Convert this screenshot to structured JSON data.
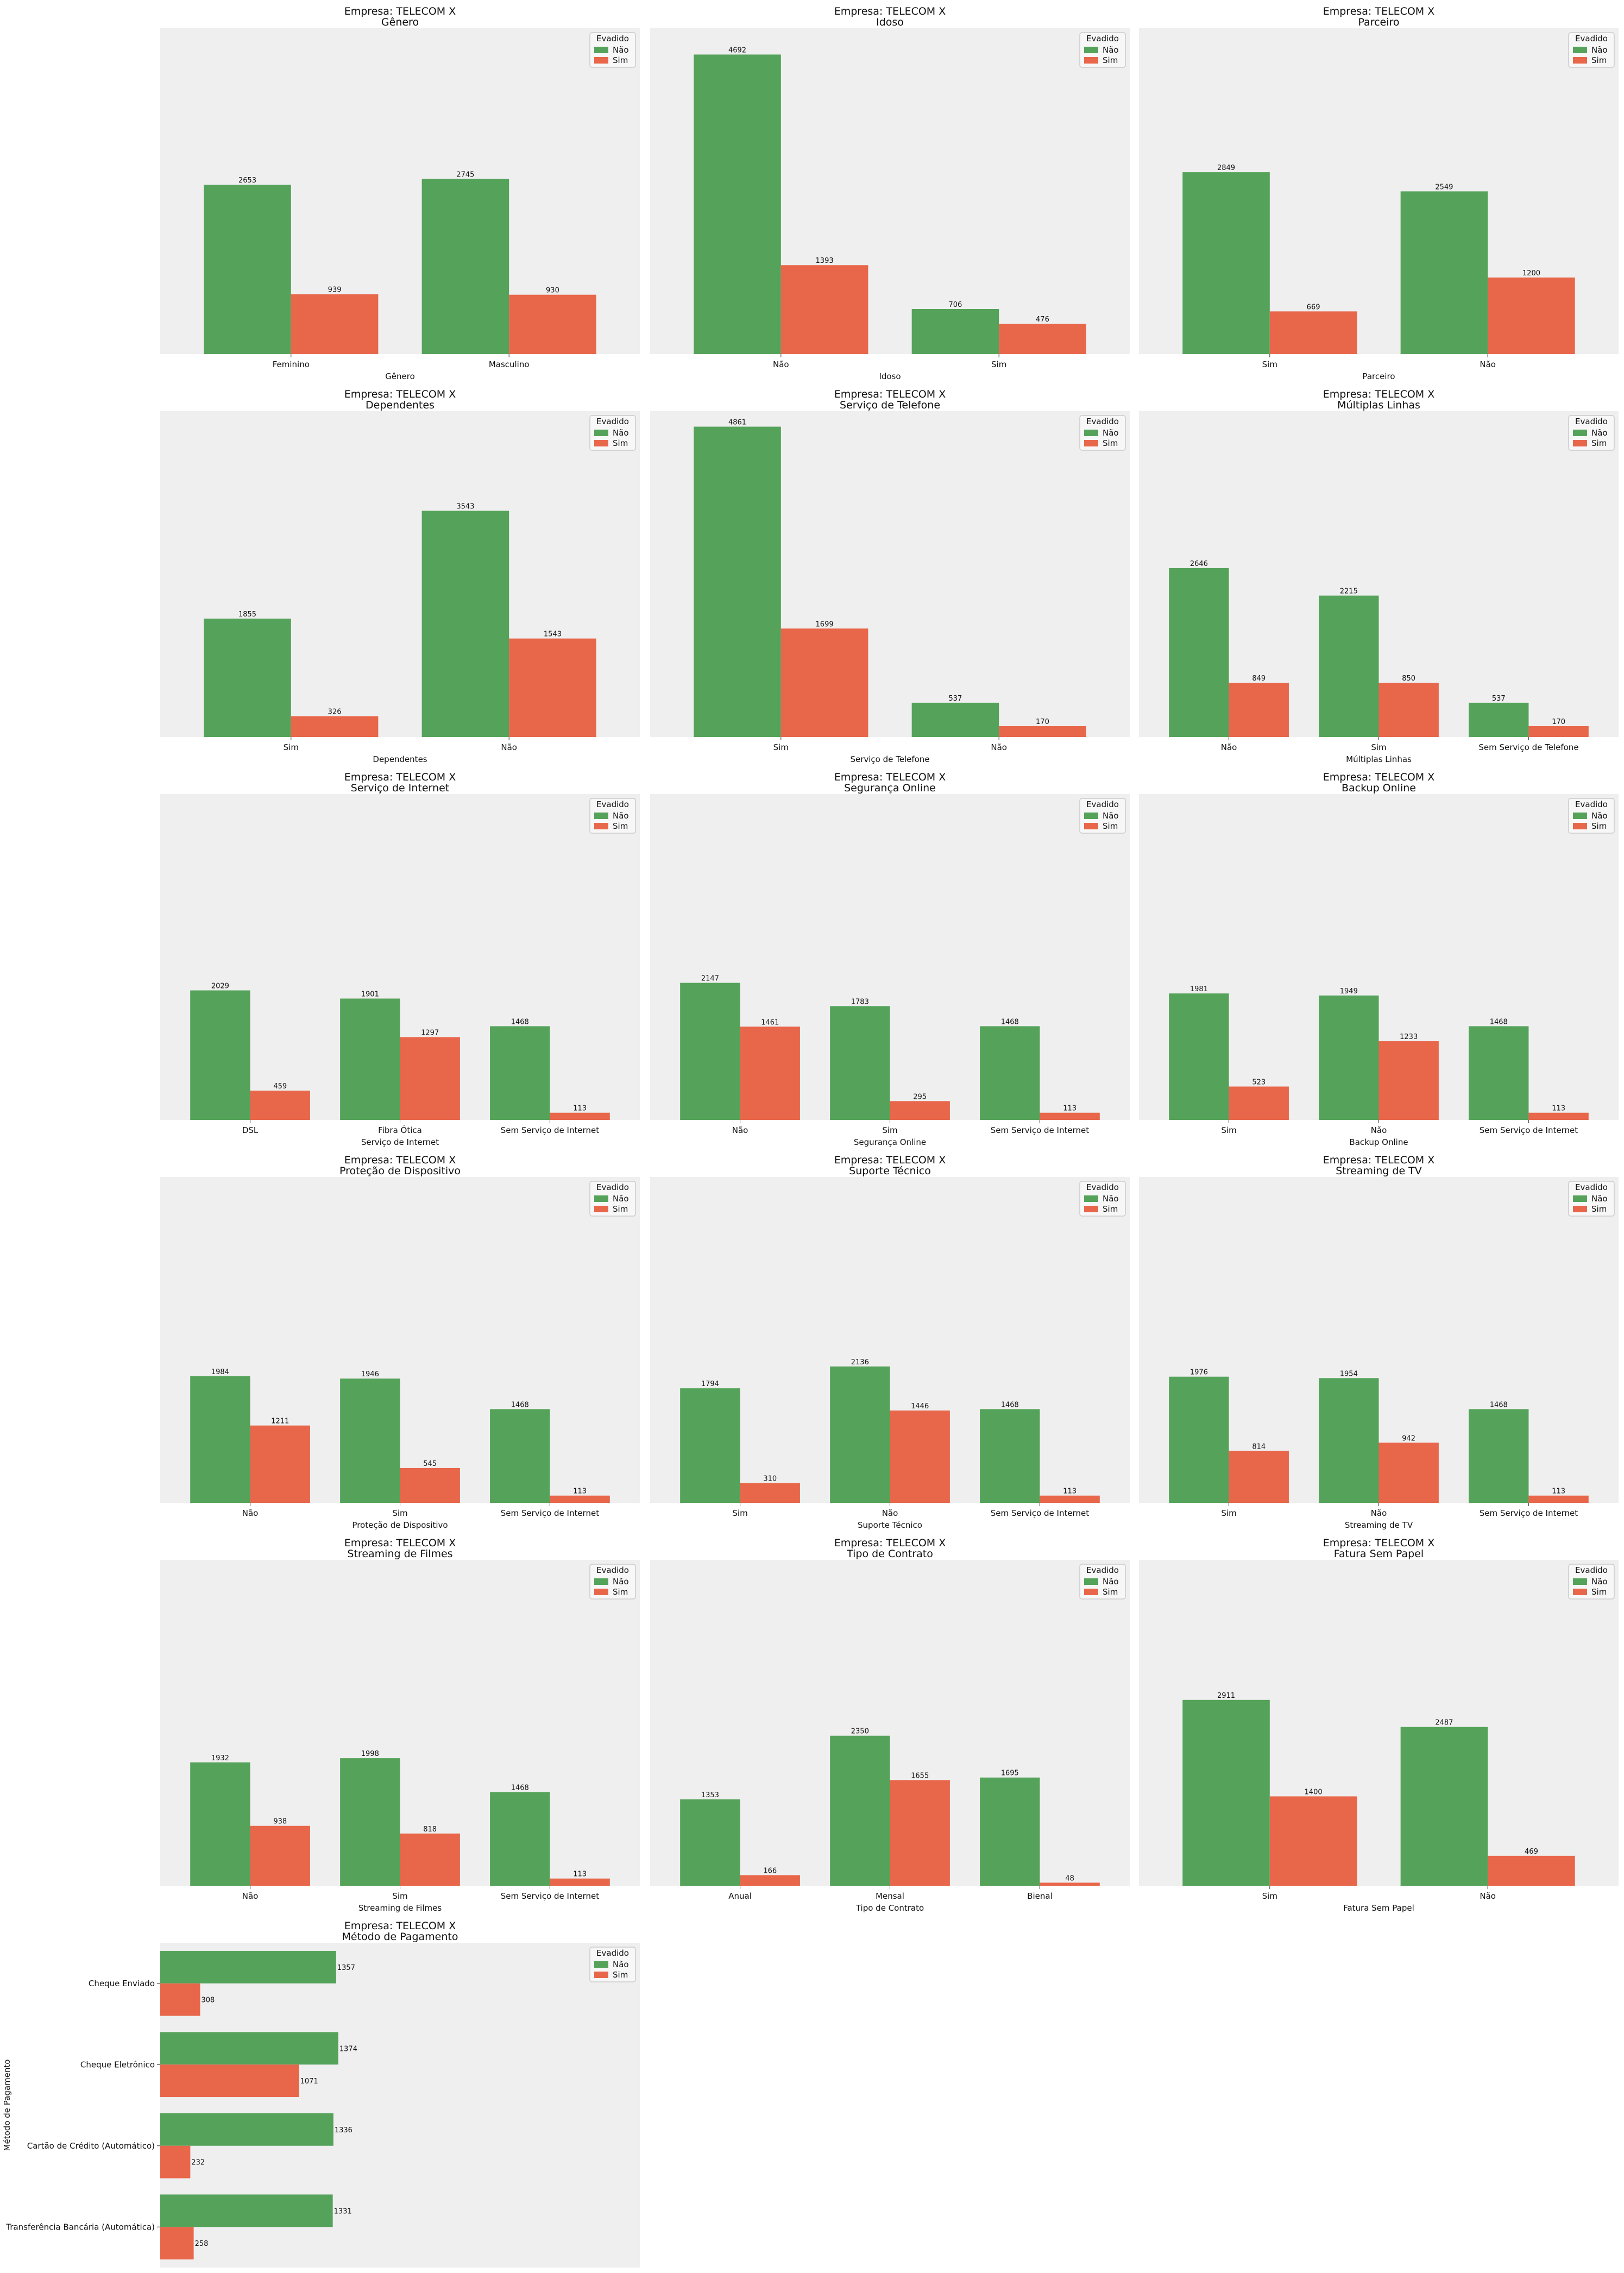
{
  "colors": {
    "nao": "#55a35a",
    "sim": "#e8664a",
    "panel_bg": "#efefef"
  },
  "chart_data": [
    {
      "type": "bar",
      "title": "Empresa: TELECOM X",
      "subtitle": "Gênero",
      "xlabel": "Gênero",
      "categories": [
        "Feminino",
        "Masculino"
      ],
      "legend": {
        "title": "Evadido",
        "position": "top-right"
      },
      "series": [
        {
          "name": "Não",
          "values": [
            2653,
            2745
          ]
        },
        {
          "name": "Sim",
          "values": [
            939,
            930
          ]
        }
      ]
    },
    {
      "type": "bar",
      "title": "Empresa: TELECOM X",
      "subtitle": "Idoso",
      "xlabel": "Idoso",
      "categories": [
        "Não",
        "Sim"
      ],
      "legend": {
        "title": "Evadido",
        "position": "top-right"
      },
      "series": [
        {
          "name": "Não",
          "values": [
            4692,
            706
          ]
        },
        {
          "name": "Sim",
          "values": [
            1393,
            476
          ]
        }
      ]
    },
    {
      "type": "bar",
      "title": "Empresa: TELECOM X",
      "subtitle": "Parceiro",
      "xlabel": "Parceiro",
      "categories": [
        "Sim",
        "Não"
      ],
      "legend": {
        "title": "Evadido",
        "position": "top-right"
      },
      "series": [
        {
          "name": "Não",
          "values": [
            2849,
            2549
          ]
        },
        {
          "name": "Sim",
          "values": [
            669,
            1200
          ]
        }
      ]
    },
    {
      "type": "bar",
      "title": "Empresa: TELECOM X",
      "subtitle": "Dependentes",
      "xlabel": "Dependentes",
      "categories": [
        "Sim",
        "Não"
      ],
      "legend": {
        "title": "Evadido",
        "position": "top-right"
      },
      "series": [
        {
          "name": "Não",
          "values": [
            1855,
            3543
          ]
        },
        {
          "name": "Sim",
          "values": [
            326,
            1543
          ]
        }
      ]
    },
    {
      "type": "bar",
      "title": "Empresa: TELECOM X",
      "subtitle": "Serviço de Telefone",
      "xlabel": "Serviço de Telefone",
      "categories": [
        "Sim",
        "Não"
      ],
      "legend": {
        "title": "Evadido",
        "position": "top-right"
      },
      "series": [
        {
          "name": "Não",
          "values": [
            4861,
            537
          ]
        },
        {
          "name": "Sim",
          "values": [
            1699,
            170
          ]
        }
      ]
    },
    {
      "type": "bar",
      "title": "Empresa: TELECOM X",
      "subtitle": "Múltiplas Linhas",
      "xlabel": "Múltiplas Linhas",
      "categories": [
        "Não",
        "Sim",
        "Sem Serviço de Telefone"
      ],
      "legend": {
        "title": "Evadido",
        "position": "top-right"
      },
      "series": [
        {
          "name": "Não",
          "values": [
            2646,
            2215,
            537
          ]
        },
        {
          "name": "Sim",
          "values": [
            849,
            850,
            170
          ]
        }
      ]
    },
    {
      "type": "bar",
      "title": "Empresa: TELECOM X",
      "subtitle": "Serviço de Internet",
      "xlabel": "Serviço de Internet",
      "categories": [
        "DSL",
        "Fibra Ótica",
        "Sem Serviço de Internet"
      ],
      "legend": {
        "title": "Evadido",
        "position": "top-right"
      },
      "series": [
        {
          "name": "Não",
          "values": [
            2029,
            1901,
            1468
          ]
        },
        {
          "name": "Sim",
          "values": [
            459,
            1297,
            113
          ]
        }
      ]
    },
    {
      "type": "bar",
      "title": "Empresa: TELECOM X",
      "subtitle": "Segurança Online",
      "xlabel": "Segurança Online",
      "categories": [
        "Não",
        "Sim",
        "Sem Serviço de Internet"
      ],
      "legend": {
        "title": "Evadido",
        "position": "top-right"
      },
      "series": [
        {
          "name": "Não",
          "values": [
            2147,
            1783,
            1468
          ]
        },
        {
          "name": "Sim",
          "values": [
            1461,
            295,
            113
          ]
        }
      ]
    },
    {
      "type": "bar",
      "title": "Empresa: TELECOM X",
      "subtitle": "Backup Online",
      "xlabel": "Backup Online",
      "categories": [
        "Sim",
        "Não",
        "Sem Serviço de Internet"
      ],
      "legend": {
        "title": "Evadido",
        "position": "top-right"
      },
      "series": [
        {
          "name": "Não",
          "values": [
            1981,
            1949,
            1468
          ]
        },
        {
          "name": "Sim",
          "values": [
            523,
            1233,
            113
          ]
        }
      ]
    },
    {
      "type": "bar",
      "title": "Empresa: TELECOM X",
      "subtitle": "Proteção de Dispositivo",
      "xlabel": "Proteção de Dispositivo",
      "categories": [
        "Não",
        "Sim",
        "Sem Serviço de Internet"
      ],
      "legend": {
        "title": "Evadido",
        "position": "top-right"
      },
      "series": [
        {
          "name": "Não",
          "values": [
            1984,
            1946,
            1468
          ]
        },
        {
          "name": "Sim",
          "values": [
            1211,
            545,
            113
          ]
        }
      ]
    },
    {
      "type": "bar",
      "title": "Empresa: TELECOM X",
      "subtitle": "Suporte Técnico",
      "xlabel": "Suporte Técnico",
      "categories": [
        "Sim",
        "Não",
        "Sem Serviço de Internet"
      ],
      "legend": {
        "title": "Evadido",
        "position": "top-right"
      },
      "series": [
        {
          "name": "Não",
          "values": [
            1794,
            2136,
            1468
          ]
        },
        {
          "name": "Sim",
          "values": [
            310,
            1446,
            113
          ]
        }
      ]
    },
    {
      "type": "bar",
      "title": "Empresa: TELECOM X",
      "subtitle": "Streaming de TV",
      "xlabel": "Streaming de TV",
      "categories": [
        "Sim",
        "Não",
        "Sem Serviço de Internet"
      ],
      "legend": {
        "title": "Evadido",
        "position": "top-right"
      },
      "series": [
        {
          "name": "Não",
          "values": [
            1976,
            1954,
            1468
          ]
        },
        {
          "name": "Sim",
          "values": [
            814,
            942,
            113
          ]
        }
      ]
    },
    {
      "type": "bar",
      "title": "Empresa: TELECOM X",
      "subtitle": "Streaming de Filmes",
      "xlabel": "Streaming de Filmes",
      "categories": [
        "Não",
        "Sim",
        "Sem Serviço de Internet"
      ],
      "legend": {
        "title": "Evadido",
        "position": "top-right"
      },
      "series": [
        {
          "name": "Não",
          "values": [
            1932,
            1998,
            1468
          ]
        },
        {
          "name": "Sim",
          "values": [
            938,
            818,
            113
          ]
        }
      ]
    },
    {
      "type": "bar",
      "title": "Empresa: TELECOM X",
      "subtitle": "Tipo de Contrato",
      "xlabel": "Tipo de Contrato",
      "categories": [
        "Anual",
        "Mensal",
        "Bienal"
      ],
      "legend": {
        "title": "Evadido",
        "position": "top-right"
      },
      "series": [
        {
          "name": "Não",
          "values": [
            1353,
            2350,
            1695
          ]
        },
        {
          "name": "Sim",
          "values": [
            166,
            1655,
            48
          ]
        }
      ]
    },
    {
      "type": "bar",
      "title": "Empresa: TELECOM X",
      "subtitle": "Fatura Sem Papel",
      "xlabel": "Fatura Sem Papel",
      "categories": [
        "Sim",
        "Não"
      ],
      "legend": {
        "title": "Evadido",
        "position": "top-right"
      },
      "series": [
        {
          "name": "Não",
          "values": [
            2911,
            2487
          ]
        },
        {
          "name": "Sim",
          "values": [
            1400,
            469
          ]
        }
      ]
    },
    {
      "type": "bar",
      "orientation": "horizontal",
      "title": "Empresa: TELECOM X",
      "subtitle": "Método de Pagamento",
      "ylabel": "Método de Pagamento",
      "categories": [
        "Cheque Enviado",
        "Cheque Eletrônico",
        "Cartão de Crédito (Automático)",
        "Transferência Bancária (Automática)"
      ],
      "legend": {
        "title": "Evadido",
        "position": "top-right"
      },
      "series": [
        {
          "name": "Não",
          "values": [
            1357,
            1374,
            1336,
            1331
          ]
        },
        {
          "name": "Sim",
          "values": [
            308,
            1071,
            232,
            258
          ]
        }
      ]
    }
  ]
}
